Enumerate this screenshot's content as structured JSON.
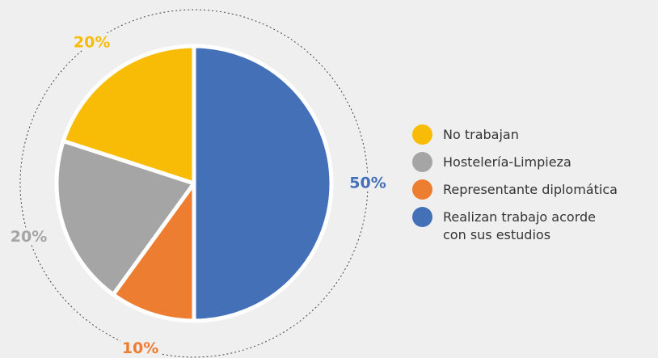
{
  "chart_data": {
    "type": "pie",
    "categories": [
      "No trabajan",
      "Hostelería-Limpieza",
      "Representante diplomática",
      "Realizan trabajo acorde\ncon sus estudios"
    ],
    "values": [
      20,
      20,
      10,
      50
    ],
    "value_labels": [
      "20%",
      "20%",
      "10%",
      "50%"
    ],
    "colors": [
      "#f9bc06",
      "#a5a5a5",
      "#ed7d31",
      "#4470b8"
    ],
    "legend": "right"
  }
}
